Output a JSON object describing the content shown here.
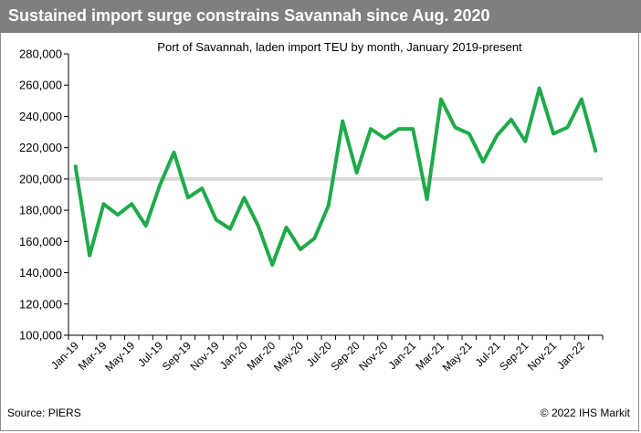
{
  "header": {
    "title": "Sustained import surge constrains Savannah since Aug. 2020"
  },
  "footer": {
    "source": "Source: PIERS",
    "copyright": "© 2022 IHS Markit"
  },
  "chart_data": {
    "type": "line",
    "title": "Port of Savannah, laden import TEU by month, January 2019-present",
    "xlabel": "",
    "ylabel": "",
    "ylim": [
      100000,
      280000
    ],
    "yticks": [
      100000,
      120000,
      140000,
      160000,
      180000,
      200000,
      220000,
      240000,
      260000,
      280000
    ],
    "ytick_labels": [
      "100,000",
      "120,000",
      "140,000",
      "160,000",
      "180,000",
      "200,000",
      "220,000",
      "240,000",
      "260,000",
      "280,000"
    ],
    "x_tick_labels": [
      "Jan-19",
      "Mar-19",
      "May-19",
      "Jul-19",
      "Sep-19",
      "Nov-19",
      "Jan-20",
      "Mar-20",
      "May-20",
      "Jul-20",
      "Sep-20",
      "Nov-20",
      "Jan-21",
      "Mar-21",
      "May-21",
      "Jul-21",
      "Sep-21",
      "Nov-21",
      "Jan-22"
    ],
    "reference_line": 200000,
    "reference_color": "#d9d9d9",
    "line_color": "#1faa4a",
    "grid": false,
    "legend": "none",
    "series": [
      {
        "x": [
          "Jan-19",
          "Feb-19",
          "Mar-19",
          "Apr-19",
          "May-19",
          "Jun-19",
          "Jul-19",
          "Aug-19",
          "Sep-19",
          "Oct-19",
          "Nov-19",
          "Dec-19",
          "Jan-20",
          "Feb-20",
          "Mar-20",
          "Apr-20",
          "May-20",
          "Jun-20",
          "Jul-20",
          "Aug-20",
          "Sep-20",
          "Oct-20",
          "Nov-20",
          "Dec-20",
          "Jan-21",
          "Feb-21",
          "Mar-21",
          "Apr-21",
          "May-21",
          "Jun-21",
          "Jul-21",
          "Aug-21",
          "Sep-21",
          "Oct-21",
          "Nov-21",
          "Dec-21",
          "Jan-22",
          "Feb-22"
        ],
        "values": [
          208000,
          151000,
          184000,
          177000,
          184000,
          170000,
          196000,
          217000,
          188000,
          194000,
          174000,
          168000,
          188000,
          170000,
          145000,
          169000,
          155000,
          162000,
          183000,
          237000,
          204000,
          232000,
          226000,
          232000,
          232000,
          187000,
          251000,
          233000,
          229000,
          211000,
          228000,
          238000,
          224000,
          258000,
          229000,
          233000,
          251000,
          218000
        ]
      }
    ]
  }
}
